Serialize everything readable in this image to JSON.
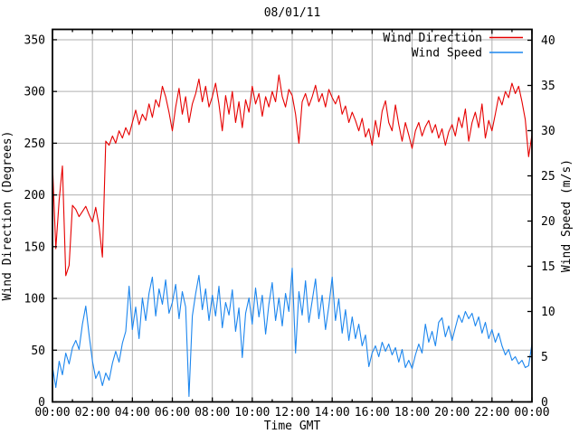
{
  "title": "08/01/11",
  "axes": {
    "x": {
      "label": "Time GMT"
    },
    "y_left": {
      "label": "Wind Direction (Degrees)"
    },
    "y_right": {
      "label": "Wind Speed (m/s)"
    }
  },
  "legend": [
    {
      "label": "Wind Direction",
      "color": "#e60000"
    },
    {
      "label": "Wind Speed",
      "color": "#1c86ee"
    }
  ],
  "colors": {
    "grid": "#b0b0b0",
    "border": "#000000",
    "background": "#ffffff"
  },
  "chart_data": {
    "type": "line",
    "title": "08/01/11",
    "xlabel": "Time GMT",
    "ylabel_left": "Wind Direction (Degrees)",
    "ylabel_right": "Wind Speed (m/s)",
    "x_hours_range": [
      0,
      24
    ],
    "x_tick_hours": [
      0,
      2,
      4,
      6,
      8,
      10,
      12,
      14,
      16,
      18,
      20,
      22,
      24
    ],
    "x_tick_labels": [
      "00:00",
      "02:00",
      "04:00",
      "06:00",
      "08:00",
      "10:00",
      "12:00",
      "14:00",
      "16:00",
      "18:00",
      "20:00",
      "22:00",
      "00:00"
    ],
    "x_minor_tick_hours": [
      1,
      3,
      5,
      7,
      9,
      11,
      13,
      15,
      17,
      19,
      21,
      23
    ],
    "ylim_left": [
      0,
      360
    ],
    "y_left_ticks": [
      0,
      50,
      100,
      150,
      200,
      250,
      300,
      350
    ],
    "ylim_right": [
      0,
      41.2
    ],
    "y_right_ticks": [
      0,
      5,
      10,
      15,
      20,
      25,
      30,
      35,
      40
    ],
    "grid": true,
    "legend_position": "top-right-inside",
    "sample_interval_minutes": 10,
    "series": [
      {
        "name": "Wind Direction",
        "axis": "left",
        "units": "degrees",
        "color": "#e60000",
        "values": [
          230,
          148,
          195,
          228,
          122,
          132,
          190,
          186,
          179,
          184,
          189,
          181,
          174,
          188,
          170,
          140,
          252,
          248,
          257,
          250,
          262,
          255,
          265,
          258,
          270,
          282,
          268,
          278,
          272,
          288,
          275,
          292,
          285,
          305,
          295,
          280,
          262,
          285,
          303,
          278,
          295,
          270,
          288,
          298,
          312,
          290,
          305,
          285,
          295,
          308,
          288,
          262,
          296,
          278,
          300,
          270,
          290,
          265,
          292,
          280,
          305,
          288,
          298,
          276,
          295,
          285,
          300,
          290,
          316,
          295,
          285,
          302,
          296,
          278,
          250,
          290,
          298,
          286,
          295,
          306,
          290,
          298,
          285,
          302,
          294,
          288,
          296,
          278,
          286,
          270,
          280,
          272,
          262,
          274,
          256,
          264,
          248,
          272,
          256,
          281,
          291,
          270,
          262,
          287,
          268,
          252,
          270,
          258,
          245,
          262,
          270,
          257,
          266,
          272,
          260,
          268,
          255,
          264,
          248,
          261,
          268,
          257,
          275,
          265,
          283,
          252,
          270,
          280,
          265,
          288,
          255,
          272,
          262,
          278,
          295,
          287,
          300,
          294,
          308,
          298,
          305,
          290,
          273,
          237,
          258
        ]
      },
      {
        "name": "Wind Speed",
        "axis": "right",
        "units": "m/s",
        "color": "#1c86ee",
        "values": [
          3.9,
          1.6,
          4.5,
          3.0,
          5.4,
          4.2,
          6.0,
          6.8,
          5.8,
          8.6,
          10.6,
          7.4,
          4.5,
          2.6,
          3.4,
          1.8,
          3.2,
          2.4,
          4.3,
          5.6,
          4.4,
          6.5,
          7.8,
          12.8,
          8.0,
          10.5,
          7.0,
          11.5,
          9.0,
          12.0,
          13.8,
          9.5,
          12.5,
          10.8,
          13.5,
          9.8,
          11.0,
          13.0,
          9.2,
          12.2,
          10.5,
          0.6,
          9.5,
          12.0,
          14.0,
          10.2,
          12.5,
          9.0,
          11.8,
          9.5,
          12.8,
          8.2,
          11.0,
          9.6,
          12.4,
          7.8,
          10.4,
          4.9,
          9.8,
          11.5,
          8.6,
          12.6,
          9.4,
          11.8,
          7.5,
          10.8,
          13.2,
          9.0,
          11.5,
          8.4,
          12.0,
          10.0,
          14.8,
          5.4,
          12.2,
          9.6,
          13.4,
          8.8,
          11.2,
          13.6,
          9.2,
          11.8,
          8.0,
          10.6,
          13.8,
          9.0,
          11.4,
          7.6,
          10.2,
          6.8,
          9.4,
          7.0,
          8.6,
          6.2,
          7.4,
          3.9,
          5.4,
          6.2,
          5.0,
          6.6,
          5.6,
          6.4,
          5.2,
          6.0,
          4.4,
          5.8,
          3.8,
          4.6,
          3.7,
          5.2,
          6.4,
          5.4,
          8.6,
          6.6,
          7.8,
          6.2,
          8.8,
          9.3,
          7.2,
          8.4,
          6.8,
          8.2,
          9.6,
          8.8,
          10.0,
          9.2,
          9.8,
          8.4,
          9.4,
          7.6,
          8.8,
          7.0,
          8.0,
          6.6,
          7.6,
          6.2,
          5.2,
          5.8,
          4.6,
          5.0,
          4.2,
          4.6,
          3.8,
          4.0,
          6.4
        ]
      }
    ]
  }
}
